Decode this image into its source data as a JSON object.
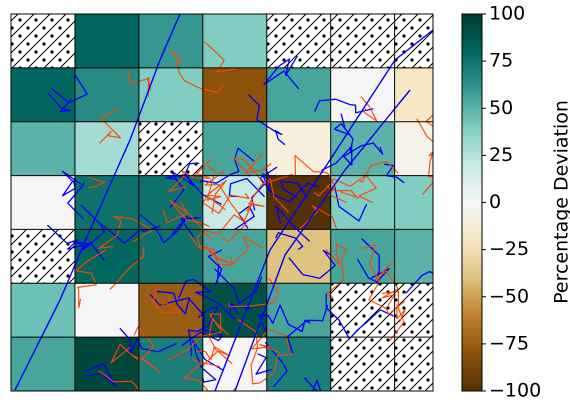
{
  "chart_data": {
    "type": "heatmap",
    "title": "",
    "colorbar": {
      "label": "Percentage Deviation",
      "range": [
        -100,
        100
      ],
      "ticks": [
        100,
        75,
        50,
        25,
        0,
        -25,
        -50,
        -75,
        -100
      ],
      "tick_labels": [
        "100",
        "75",
        "50",
        "25",
        "0",
        "−25",
        "−50",
        "−75",
        "−100"
      ],
      "colormap": "BrBG",
      "colors": [
        "#543005",
        "#8c510a",
        "#bf812d",
        "#dfc27d",
        "#f6e8c3",
        "#f5f5f5",
        "#c7eae5",
        "#80cdc1",
        "#35978f",
        "#01665e",
        "#003c30"
      ]
    },
    "grid": {
      "columns": 7,
      "rows": 7,
      "column_widths": [
        1,
        1,
        1,
        1,
        1,
        1,
        0.6
      ],
      "cells": [
        [
          null,
          80,
          60,
          40,
          null,
          null,
          null
        ],
        [
          80,
          65,
          40,
          -80,
          55,
          0,
          -20
        ],
        [
          50,
          30,
          null,
          55,
          -10,
          50,
          -5
        ],
        [
          0,
          75,
          75,
          20,
          -100,
          40,
          40
        ],
        [
          null,
          80,
          75,
          55,
          -40,
          55,
          50
        ],
        [
          45,
          0,
          -75,
          90,
          55,
          null,
          null
        ],
        [
          55,
          95,
          70,
          0,
          70,
          null,
          null
        ]
      ],
      "missing_pattern": "hatched"
    },
    "overlay_networks": [
      {
        "name": "network-blue",
        "color": "#0000ff"
      },
      {
        "name": "network-orange",
        "color": "#ff4500"
      }
    ]
  }
}
